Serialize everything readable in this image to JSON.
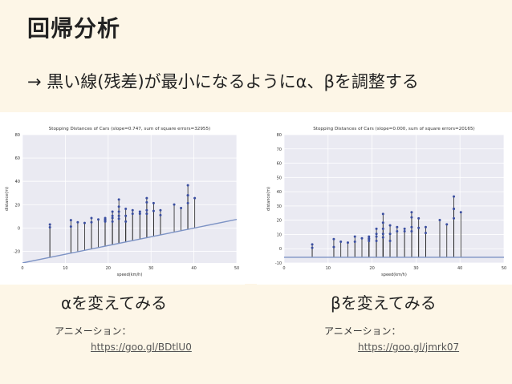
{
  "slide": {
    "title": "回帰分析",
    "subtitle": "→ 黒い線(残差)が最小になるようにα、βを調整する",
    "captions": {
      "left": "αを変えてみる",
      "right": "βを変えてみる"
    },
    "animation_label": "アニメーション：",
    "links": {
      "left": "https://goo.gl/BDtlU0",
      "right": "https://goo.gl/jmrk07"
    }
  },
  "chart_data": [
    {
      "type": "scatter",
      "title": "Stopping Distances of Cars (slope=0.747, sum of square errors=32955)",
      "xlabel": "speed(km/h)",
      "ylabel": "distance(m)",
      "xlim": [
        0,
        50
      ],
      "ylim": [
        -30,
        80
      ],
      "xticks": [
        0,
        10,
        20,
        30,
        40,
        50
      ],
      "yticks": [
        -20,
        0,
        20,
        40,
        60,
        80
      ],
      "grid": true,
      "fit_line": {
        "slope": 0.747,
        "intercept": -30
      },
      "points": [
        [
          6.4,
          0.6
        ],
        [
          6.4,
          3
        ],
        [
          11.3,
          1.2
        ],
        [
          11.3,
          6.7
        ],
        [
          12.9,
          4.9
        ],
        [
          14.5,
          4.3
        ],
        [
          16.1,
          4.9
        ],
        [
          16.1,
          8.5
        ],
        [
          17.7,
          7.3
        ],
        [
          19.3,
          5.5
        ],
        [
          19.3,
          8.5
        ],
        [
          19.3,
          6.7
        ],
        [
          19.3,
          7.3
        ],
        [
          21,
          5.5
        ],
        [
          21,
          8.5
        ],
        [
          21,
          10.4
        ],
        [
          21,
          14
        ],
        [
          22.5,
          7.9
        ],
        [
          22.5,
          10.4
        ],
        [
          22.5,
          14
        ],
        [
          22.5,
          18.3
        ],
        [
          22.5,
          24.4
        ],
        [
          24.1,
          5.5
        ],
        [
          24.1,
          10.4
        ],
        [
          24.1,
          16.4
        ],
        [
          25.7,
          12.2
        ],
        [
          25.7,
          15.2
        ],
        [
          27.4,
          12.2
        ],
        [
          27.4,
          14
        ],
        [
          29,
          12.2
        ],
        [
          29,
          15.2
        ],
        [
          29,
          22
        ],
        [
          29,
          25.6
        ],
        [
          30.6,
          14.6
        ],
        [
          30.6,
          21.3
        ],
        [
          32.2,
          11
        ],
        [
          32.2,
          15.2
        ],
        [
          35.4,
          20.1
        ],
        [
          37,
          17.1
        ],
        [
          38.6,
          21.3
        ],
        [
          38.6,
          28
        ],
        [
          38.6,
          36.6
        ],
        [
          38.6,
          28
        ],
        [
          40.2,
          25.6
        ]
      ]
    },
    {
      "type": "scatter",
      "title": "Stopping Distances of Cars (slope=0.000, sum of square errors=20165)",
      "xlabel": "speed(km/h)",
      "ylabel": "distance(m)",
      "xlim": [
        0,
        50
      ],
      "ylim": [
        -10,
        80
      ],
      "xticks": [
        0,
        10,
        20,
        30,
        40,
        50
      ],
      "yticks": [
        -10,
        0,
        10,
        20,
        30,
        40,
        50,
        60,
        70,
        80
      ],
      "grid": true,
      "fit_line": {
        "slope": 0,
        "intercept": -6
      },
      "points": [
        [
          6.4,
          0.6
        ],
        [
          6.4,
          3
        ],
        [
          11.3,
          1.2
        ],
        [
          11.3,
          6.7
        ],
        [
          12.9,
          4.9
        ],
        [
          14.5,
          4.3
        ],
        [
          16.1,
          4.9
        ],
        [
          16.1,
          8.5
        ],
        [
          17.7,
          7.3
        ],
        [
          19.3,
          5.5
        ],
        [
          19.3,
          8.5
        ],
        [
          19.3,
          6.7
        ],
        [
          19.3,
          7.3
        ],
        [
          21,
          5.5
        ],
        [
          21,
          8.5
        ],
        [
          21,
          10.4
        ],
        [
          21,
          14
        ],
        [
          22.5,
          7.9
        ],
        [
          22.5,
          10.4
        ],
        [
          22.5,
          14
        ],
        [
          22.5,
          18.3
        ],
        [
          22.5,
          24.4
        ],
        [
          24.1,
          5.5
        ],
        [
          24.1,
          10.4
        ],
        [
          24.1,
          16.4
        ],
        [
          25.7,
          12.2
        ],
        [
          25.7,
          15.2
        ],
        [
          27.4,
          12.2
        ],
        [
          27.4,
          14
        ],
        [
          29,
          12.2
        ],
        [
          29,
          15.2
        ],
        [
          29,
          22
        ],
        [
          29,
          25.6
        ],
        [
          30.6,
          14.6
        ],
        [
          30.6,
          21.3
        ],
        [
          32.2,
          11
        ],
        [
          32.2,
          15.2
        ],
        [
          35.4,
          20.1
        ],
        [
          37,
          17.1
        ],
        [
          38.6,
          21.3
        ],
        [
          38.6,
          28
        ],
        [
          38.6,
          36.6
        ],
        [
          38.6,
          28
        ],
        [
          40.2,
          25.6
        ]
      ]
    }
  ]
}
